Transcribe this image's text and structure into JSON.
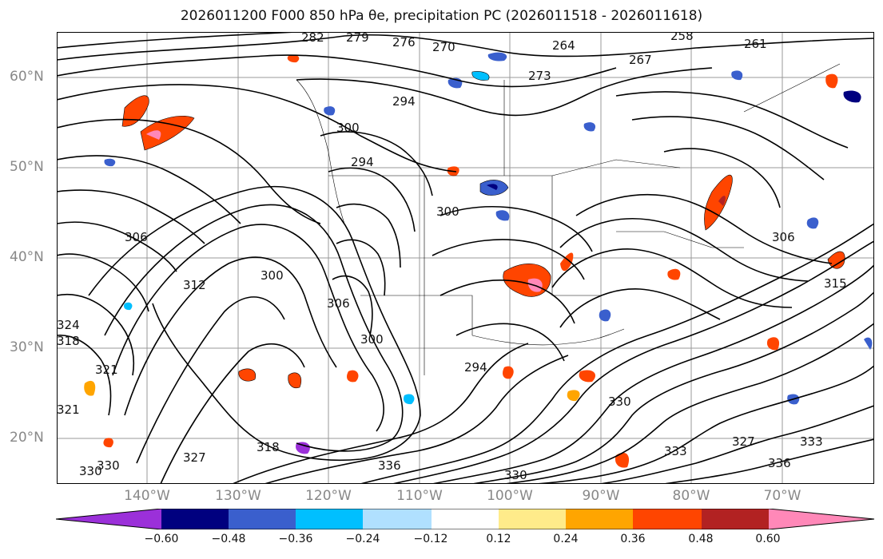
{
  "title": "2026011200 F000 850 hPa θe, precipitation PC (2026011518 - 2026011618)",
  "map": {
    "lat_labels": [
      "60°N",
      "50°N",
      "40°N",
      "30°N",
      "20°N"
    ],
    "lon_labels": [
      "140°W",
      "130°W",
      "120°W",
      "110°W",
      "100°W",
      "90°W",
      "80°W",
      "70°W"
    ],
    "contour_labels": [
      "282",
      "279",
      "276",
      "270",
      "264",
      "267",
      "273",
      "258",
      "261",
      "294",
      "300",
      "294",
      "306",
      "312",
      "300",
      "306",
      "300",
      "318",
      "321",
      "321",
      "327",
      "330",
      "336",
      "330",
      "294",
      "300",
      "315",
      "306",
      "330",
      "333",
      "327",
      "336",
      "318",
      "324",
      "330",
      "333"
    ],
    "contour_color": "#000000",
    "grid_color": "#999999"
  },
  "colorbar": {
    "tick_labels": [
      "−0.60",
      "−0.48",
      "−0.36",
      "−0.24",
      "−0.12",
      "0.12",
      "0.24",
      "0.36",
      "0.48",
      "0.60"
    ],
    "colors": [
      "#9b30d9",
      "#00007f",
      "#3a5fcd",
      "#00bfff",
      "#b0e0ff",
      "#ffffff",
      "#ffeb8a",
      "#ffa500",
      "#ff4500",
      "#b22222",
      "#ff88b8"
    ]
  }
}
